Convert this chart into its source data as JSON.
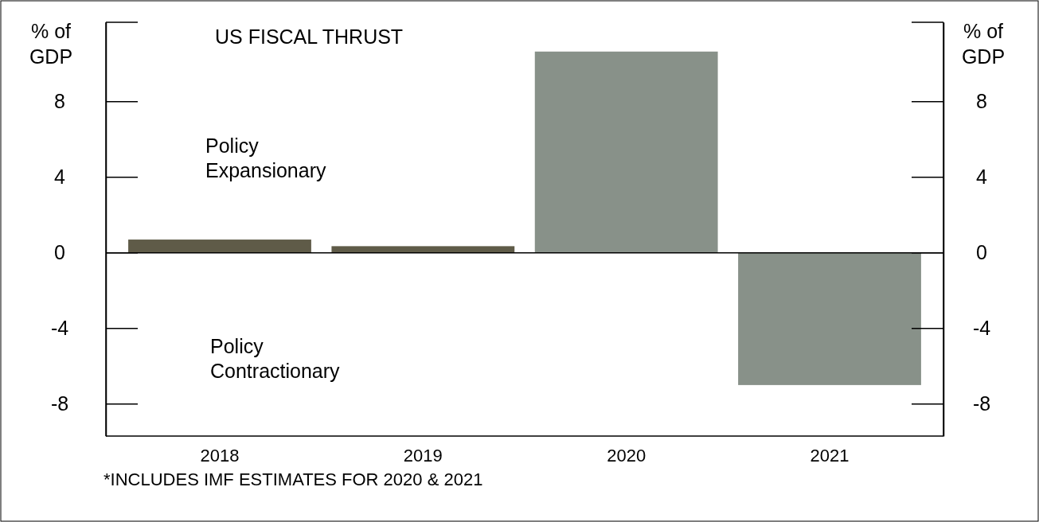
{
  "chart_data": {
    "type": "bar",
    "title": "US FISCAL THRUST",
    "ylabel": "% of\nGDP",
    "y2label": "% of\nGDP",
    "categories": [
      "2018",
      "2019",
      "2020",
      "2021"
    ],
    "values": [
      0.7,
      0.35,
      10.65,
      -7.0
    ],
    "colors": [
      "#5f5b48",
      "#5f5b48",
      "#889189",
      "#889189"
    ],
    "ylim": [
      -9.7,
      12.2
    ],
    "yticks": [
      -8,
      -4,
      0,
      4,
      8
    ],
    "y2lim": [
      -9.7,
      12.2
    ],
    "y2ticks": [
      -8,
      -4,
      0,
      4,
      8
    ],
    "grid": "y",
    "annotations": [
      {
        "text": "Policy\nExpansionary"
      },
      {
        "text": "Policy\nContractionary"
      },
      {
        "text": "*INCLUDES IMF ESTIMATES FOR 2020 & 2021"
      }
    ]
  }
}
